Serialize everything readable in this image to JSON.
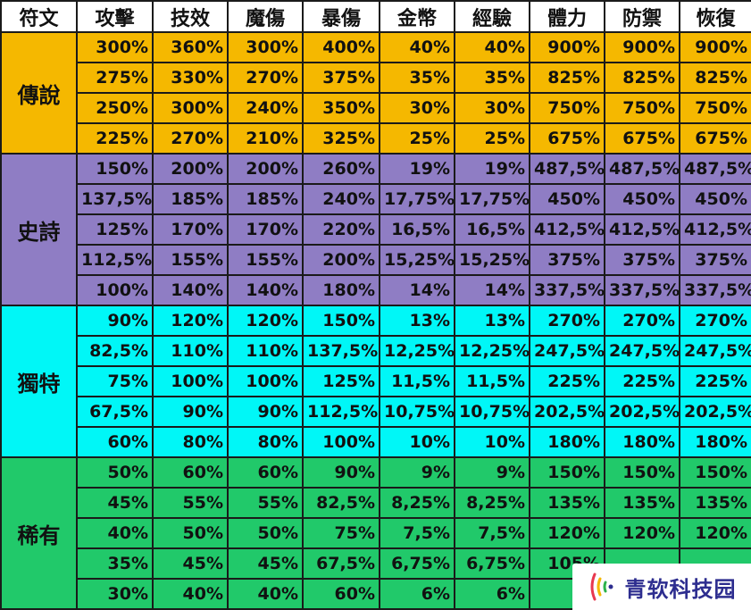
{
  "headers": [
    "符文",
    "攻擊",
    "技效",
    "魔傷",
    "暴傷",
    "金幣",
    "經驗",
    "體力",
    "防禦",
    "恢復"
  ],
  "tiers": [
    {
      "key": "legend",
      "name": "傳說",
      "rows": [
        [
          "300%",
          "360%",
          "300%",
          "400%",
          "40%",
          "40%",
          "900%",
          "900%",
          "900%"
        ],
        [
          "275%",
          "330%",
          "270%",
          "375%",
          "35%",
          "35%",
          "825%",
          "825%",
          "825%"
        ],
        [
          "250%",
          "300%",
          "240%",
          "350%",
          "30%",
          "30%",
          "750%",
          "750%",
          "750%"
        ],
        [
          "225%",
          "270%",
          "210%",
          "325%",
          "25%",
          "25%",
          "675%",
          "675%",
          "675%"
        ]
      ]
    },
    {
      "key": "epic",
      "name": "史詩",
      "rows": [
        [
          "150%",
          "200%",
          "200%",
          "260%",
          "19%",
          "19%",
          "487,5%",
          "487,5%",
          "487,5%"
        ],
        [
          "137,5%",
          "185%",
          "185%",
          "240%",
          "17,75%",
          "17,75%",
          "450%",
          "450%",
          "450%"
        ],
        [
          "125%",
          "170%",
          "170%",
          "220%",
          "16,5%",
          "16,5%",
          "412,5%",
          "412,5%",
          "412,5%"
        ],
        [
          "112,5%",
          "155%",
          "155%",
          "200%",
          "15,25%",
          "15,25%",
          "375%",
          "375%",
          "375%"
        ],
        [
          "100%",
          "140%",
          "140%",
          "180%",
          "14%",
          "14%",
          "337,5%",
          "337,5%",
          "337,5%"
        ]
      ]
    },
    {
      "key": "unique",
      "name": "獨特",
      "rows": [
        [
          "90%",
          "120%",
          "120%",
          "150%",
          "13%",
          "13%",
          "270%",
          "270%",
          "270%"
        ],
        [
          "82,5%",
          "110%",
          "110%",
          "137,5%",
          "12,25%",
          "12,25%",
          "247,5%",
          "247,5%",
          "247,5%"
        ],
        [
          "75%",
          "100%",
          "100%",
          "125%",
          "11,5%",
          "11,5%",
          "225%",
          "225%",
          "225%"
        ],
        [
          "67,5%",
          "90%",
          "90%",
          "112,5%",
          "10,75%",
          "10,75%",
          "202,5%",
          "202,5%",
          "202,5%"
        ],
        [
          "60%",
          "80%",
          "80%",
          "100%",
          "10%",
          "10%",
          "180%",
          "180%",
          "180%"
        ]
      ]
    },
    {
      "key": "rare",
      "name": "稀有",
      "rows": [
        [
          "50%",
          "60%",
          "60%",
          "90%",
          "9%",
          "9%",
          "150%",
          "150%",
          "150%"
        ],
        [
          "45%",
          "55%",
          "55%",
          "82,5%",
          "8,25%",
          "8,25%",
          "135%",
          "135%",
          "135%"
        ],
        [
          "40%",
          "50%",
          "50%",
          "75%",
          "7,5%",
          "7,5%",
          "120%",
          "120%",
          "120%"
        ],
        [
          "35%",
          "45%",
          "45%",
          "67,5%",
          "6,75%",
          "6,75%",
          "105%",
          "",
          ""
        ],
        [
          "30%",
          "40%",
          "40%",
          "60%",
          "6%",
          "6%",
          "9",
          "",
          ""
        ]
      ]
    }
  ],
  "badge": {
    "text": "青软科技园",
    "icon": "signal-waves-icon",
    "colors": {
      "red": "#e8384f",
      "yellow": "#f5b800",
      "green": "#2db34a",
      "text": "#2d2d8f"
    }
  },
  "colors": {
    "legend": "#f5b800",
    "epic": "#8f7dc4",
    "unique": "#00f7f7",
    "rare": "#21c96a"
  }
}
